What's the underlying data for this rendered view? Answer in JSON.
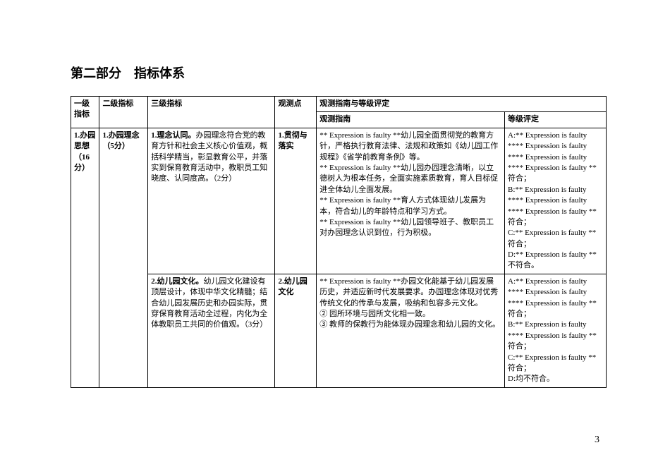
{
  "title": "第二部分　指标体系",
  "headers": {
    "l1": "一级指标",
    "l2": "二级指标",
    "l3": "三级指标",
    "obs": "观测点",
    "guide_group": "观测指南与等级评定",
    "guide": "观测指南",
    "grade": "等级评定"
  },
  "row1": {
    "l1": "1.办园思想（16分）",
    "l2": "1.办园理念（5分）",
    "l3": "1.理念认同。办园理念符合党的教育方针和社会主义核心价值观，概括科学精当，彰显教育公平，并落实到保育教育活动中，教职员工知晓度、认同度高。（2分）",
    "obs": "1.贯彻与落实",
    "guide": "** Expression is faulty **幼儿园全面贯彻党的教育方针，严格执行教育法律、法规和政策如《幼儿园工作规程》《省学前教育条例》等。\n** Expression is faulty **幼儿园办园理念清晰，以立德树人为根本任务，全面实施素质教育，育人目标促进全体幼儿全面发展。\n** Expression is faulty **育人方式体现幼儿发展为本，符合幼儿的年龄特点和学习方式。\n** Expression is faulty **幼儿园领导班子、教职员工对办园理念认识到位，行为积极。",
    "grade": "A:** Expression is faulty **** Expression is faulty **** Expression is faulty **** Expression is faulty **符合；\nB:** Expression is faulty **** Expression is faulty **** Expression is faulty **符合；\nC:** Expression is faulty **符合；\nD:** Expression is faulty **不符合。"
  },
  "row2": {
    "l3": "2.幼儿园文化。幼儿园文化建设有顶层设计，体现中华文化精髓；结合幼儿园发展历史和办园实际，贯穿保育教育活动全过程，内化为全体教职员工共同的价值观。（3分）",
    "obs": "2.幼儿园文化",
    "guide": "** Expression is faulty **办园文化能基于幼儿园发展历史，并适应新时代发展要求。办园理念体现对优秀传统文化的传承与发展，吸纳和包容多元文化。\n② 园所环境与园所文化相一致。\n③ 教师的保教行为能体现办园理念和幼儿园的文化。",
    "grade": "A:** Expression is faulty **** Expression is faulty **** Expression is faulty **符合；\nB:** Expression is faulty **** Expression is faulty **符合；\nC:** Expression is faulty **符合；\nD:均不符合。"
  },
  "page_number": "3"
}
